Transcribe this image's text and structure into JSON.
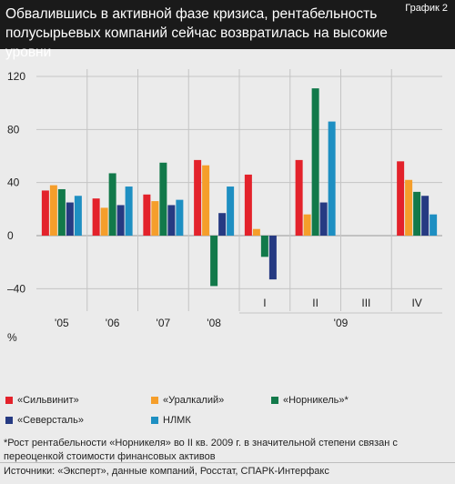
{
  "header": {
    "title": "Обвалившись в активной фазе кризиса, рентабельность полусырьевых компаний сейчас возвратилась на высокие уровни",
    "tag": "График 2"
  },
  "chart_data": {
    "type": "bar",
    "ylabel": "%",
    "ylim": [
      -50,
      120
    ],
    "yticks": [
      120,
      80,
      40,
      0,
      -40
    ],
    "ytick_labels": [
      "120",
      "80",
      "40",
      "0",
      "–40"
    ],
    "categories": [
      "'05",
      "'06",
      "'07",
      "'08",
      "I",
      "II",
      "III",
      "IV"
    ],
    "group_label_09": "'09",
    "grid": true,
    "series": [
      {
        "name": "«Сильвинит»",
        "color": "#e3222b",
        "values": [
          34,
          28,
          31,
          57,
          46,
          57,
          null,
          56
        ]
      },
      {
        "name": "«Уралкалий»",
        "color": "#f59e2b",
        "values": [
          38,
          21,
          26,
          53,
          5,
          16,
          null,
          42
        ]
      },
      {
        "name": "«Норникель»*",
        "color": "#12794a",
        "values": [
          35,
          47,
          55,
          -38,
          -16,
          111,
          null,
          33
        ]
      },
      {
        "name": "«Северсталь»",
        "color": "#263a82",
        "values": [
          25,
          23,
          23,
          17,
          -33,
          25,
          null,
          30
        ]
      },
      {
        "name": "НЛМК",
        "color": "#1e8fc2",
        "values": [
          30,
          37,
          27,
          37,
          null,
          86,
          null,
          16
        ]
      }
    ]
  },
  "note": "*Рост рентабельности «Норникеля» во II кв. 2009 г. в значительной степени связан с переоценкой стоимости финансовых активов",
  "sources": "Источники: «Эксперт», данные компаний, Росстат, СПАРК-Интерфакс"
}
